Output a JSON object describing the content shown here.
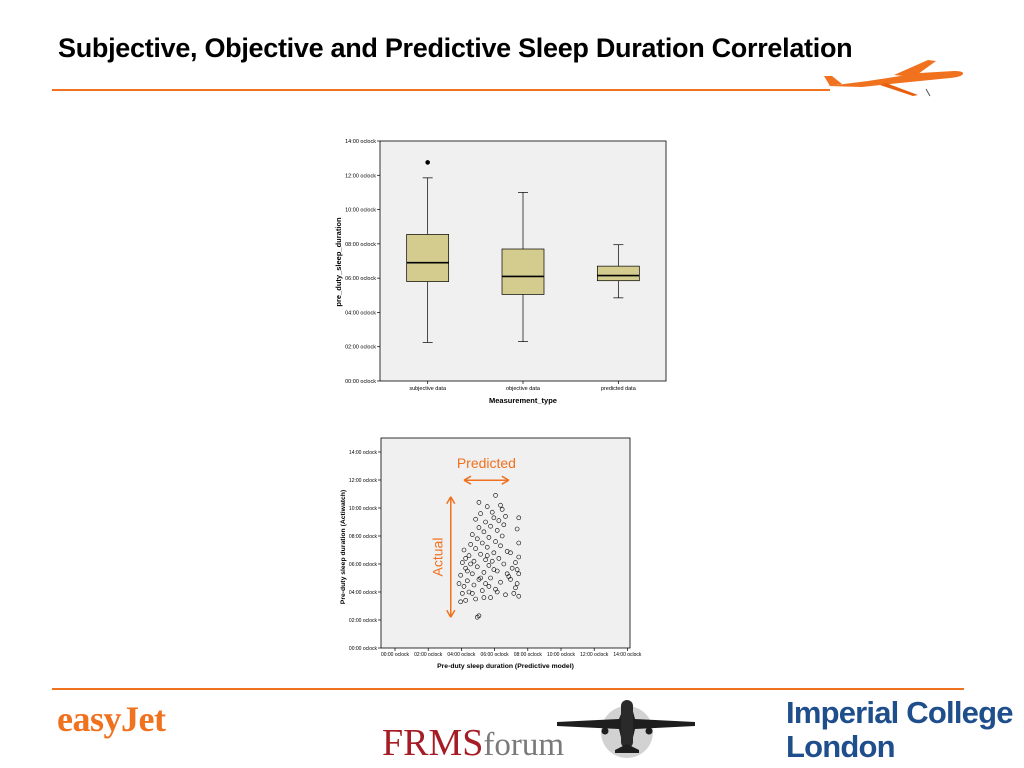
{
  "slide": {
    "title": "Subjective, Objective and Predictive Sleep Duration Correlation",
    "colors": {
      "accent": "#f0711e",
      "box_fill": "#d4cc8f",
      "plot_bg": "#f0f0f0"
    }
  },
  "chart_data": [
    {
      "type": "boxplot",
      "title": "",
      "xlabel": "Measurement_type",
      "ylabel": "pre_duty_sleep_duration",
      "ylim": [
        0,
        14
      ],
      "y_unit": "hours",
      "y_ticks": [
        "00:00 oclock",
        "02:00 oclock",
        "04:00 oclock",
        "06:00 oclock",
        "08:00 oclock",
        "10:00 oclock",
        "12:00 oclock",
        "14:00 oclock"
      ],
      "categories": [
        "subjective data",
        "objective data",
        "predicted data"
      ],
      "boxes": [
        {
          "category": "subjective data",
          "min": 2.25,
          "q1": 5.8,
          "median": 6.9,
          "q3": 8.55,
          "max": 11.85,
          "outliers": [
            12.75
          ]
        },
        {
          "category": "objective data",
          "min": 2.3,
          "q1": 5.05,
          "median": 6.1,
          "q3": 7.7,
          "max": 11.0,
          "outliers": []
        },
        {
          "category": "predicted data",
          "min": 4.85,
          "q1": 5.85,
          "median": 6.15,
          "q3": 6.7,
          "max": 7.95,
          "outliers": []
        }
      ],
      "grid": false,
      "legend": "none"
    },
    {
      "type": "scatter",
      "title": "",
      "xlabel": "Pre-duty sleep duration (Predictive model)",
      "ylabel": "Pre-duty sleep duration (Actiwatch)",
      "xlim": [
        0,
        15
      ],
      "ylim": [
        0,
        15
      ],
      "x_unit": "hours",
      "y_unit": "hours",
      "x_ticks": [
        "00:00 oclock",
        "02:00 oclock",
        "04:00 oclock",
        "06:00 oclock",
        "08:00 oclock",
        "10:00 oclock",
        "12:00 oclock",
        "14:00 oclock"
      ],
      "y_ticks": [
        "00:00 oclock",
        "02:00 oclock",
        "04:00 oclock",
        "06:00 oclock",
        "08:00 oclock",
        "10:00 oclock",
        "12:00 oclock",
        "14:00 oclock"
      ],
      "annotations": [
        {
          "text": "Predicted",
          "direction": "horizontal",
          "from": 5.0,
          "to": 7.7,
          "at": 12.2
        },
        {
          "text": "Actual",
          "direction": "vertical",
          "from": 2.2,
          "to": 10.8,
          "at": 3.9
        }
      ],
      "points": [
        [
          5.8,
          2.2
        ],
        [
          5.9,
          2.3
        ],
        [
          4.8,
          3.3
        ],
        [
          5.1,
          3.4
        ],
        [
          5.7,
          3.5
        ],
        [
          6.6,
          3.6
        ],
        [
          8.3,
          3.7
        ],
        [
          7.5,
          3.8
        ],
        [
          4.9,
          3.9
        ],
        [
          5.3,
          4.0
        ],
        [
          6.1,
          4.1
        ],
        [
          6.9,
          4.2
        ],
        [
          8.1,
          4.3
        ],
        [
          5.0,
          4.4
        ],
        [
          5.6,
          4.5
        ],
        [
          6.3,
          4.6
        ],
        [
          7.2,
          4.7
        ],
        [
          5.2,
          4.8
        ],
        [
          5.9,
          4.9
        ],
        [
          6.6,
          5.0
        ],
        [
          7.7,
          5.1
        ],
        [
          4.8,
          5.2
        ],
        [
          5.5,
          5.3
        ],
        [
          6.2,
          5.4
        ],
        [
          7.0,
          5.5
        ],
        [
          8.2,
          5.6
        ],
        [
          5.1,
          5.7
        ],
        [
          5.8,
          5.8
        ],
        [
          6.5,
          5.9
        ],
        [
          7.4,
          6.0
        ],
        [
          4.9,
          6.1
        ],
        [
          5.6,
          6.2
        ],
        [
          6.3,
          6.3
        ],
        [
          7.1,
          6.4
        ],
        [
          8.3,
          6.5
        ],
        [
          5.3,
          6.6
        ],
        [
          6.0,
          6.7
        ],
        [
          6.8,
          6.8
        ],
        [
          7.6,
          6.9
        ],
        [
          5.0,
          7.0
        ],
        [
          5.7,
          7.1
        ],
        [
          6.4,
          7.2
        ],
        [
          7.2,
          7.3
        ],
        [
          5.4,
          7.4
        ],
        [
          6.1,
          7.5
        ],
        [
          6.9,
          7.6
        ],
        [
          5.8,
          7.8
        ],
        [
          6.5,
          7.9
        ],
        [
          7.3,
          8.0
        ],
        [
          5.5,
          8.1
        ],
        [
          6.2,
          8.3
        ],
        [
          7.0,
          8.4
        ],
        [
          5.9,
          8.6
        ],
        [
          6.6,
          8.7
        ],
        [
          7.4,
          8.8
        ],
        [
          6.3,
          9.0
        ],
        [
          7.1,
          9.1
        ],
        [
          5.7,
          9.2
        ],
        [
          6.8,
          9.3
        ],
        [
          7.5,
          9.4
        ],
        [
          6.0,
          9.6
        ],
        [
          6.7,
          9.7
        ],
        [
          7.3,
          9.9
        ],
        [
          6.4,
          10.1
        ],
        [
          7.2,
          10.2
        ],
        [
          5.9,
          10.4
        ],
        [
          6.9,
          10.9
        ],
        [
          8.3,
          9.3
        ],
        [
          8.2,
          8.5
        ],
        [
          8.3,
          7.5
        ],
        [
          8.1,
          6.1
        ],
        [
          8.3,
          5.3
        ],
        [
          8.2,
          4.6
        ],
        [
          8.0,
          3.9
        ],
        [
          7.9,
          5.7
        ],
        [
          7.8,
          4.9
        ],
        [
          5.2,
          5.5
        ],
        [
          6.0,
          5.0
        ],
        [
          6.5,
          4.4
        ],
        [
          7.0,
          4.0
        ],
        [
          6.2,
          3.6
        ],
        [
          5.5,
          3.9
        ],
        [
          4.7,
          4.6
        ],
        [
          6.7,
          6.2
        ],
        [
          7.8,
          6.8
        ],
        [
          5.4,
          6.0
        ],
        [
          6.8,
          5.6
        ],
        [
          7.6,
          5.3
        ],
        [
          5.1,
          6.4
        ],
        [
          6.4,
          6.6
        ]
      ],
      "grid": false,
      "legend": "none"
    }
  ],
  "footer": {
    "easyjet_logo": "easyJet",
    "frms_logo_main": "FRMS",
    "frms_logo_sub": "forum",
    "imperial_line1": "Imperial College",
    "imperial_line2": "London"
  }
}
